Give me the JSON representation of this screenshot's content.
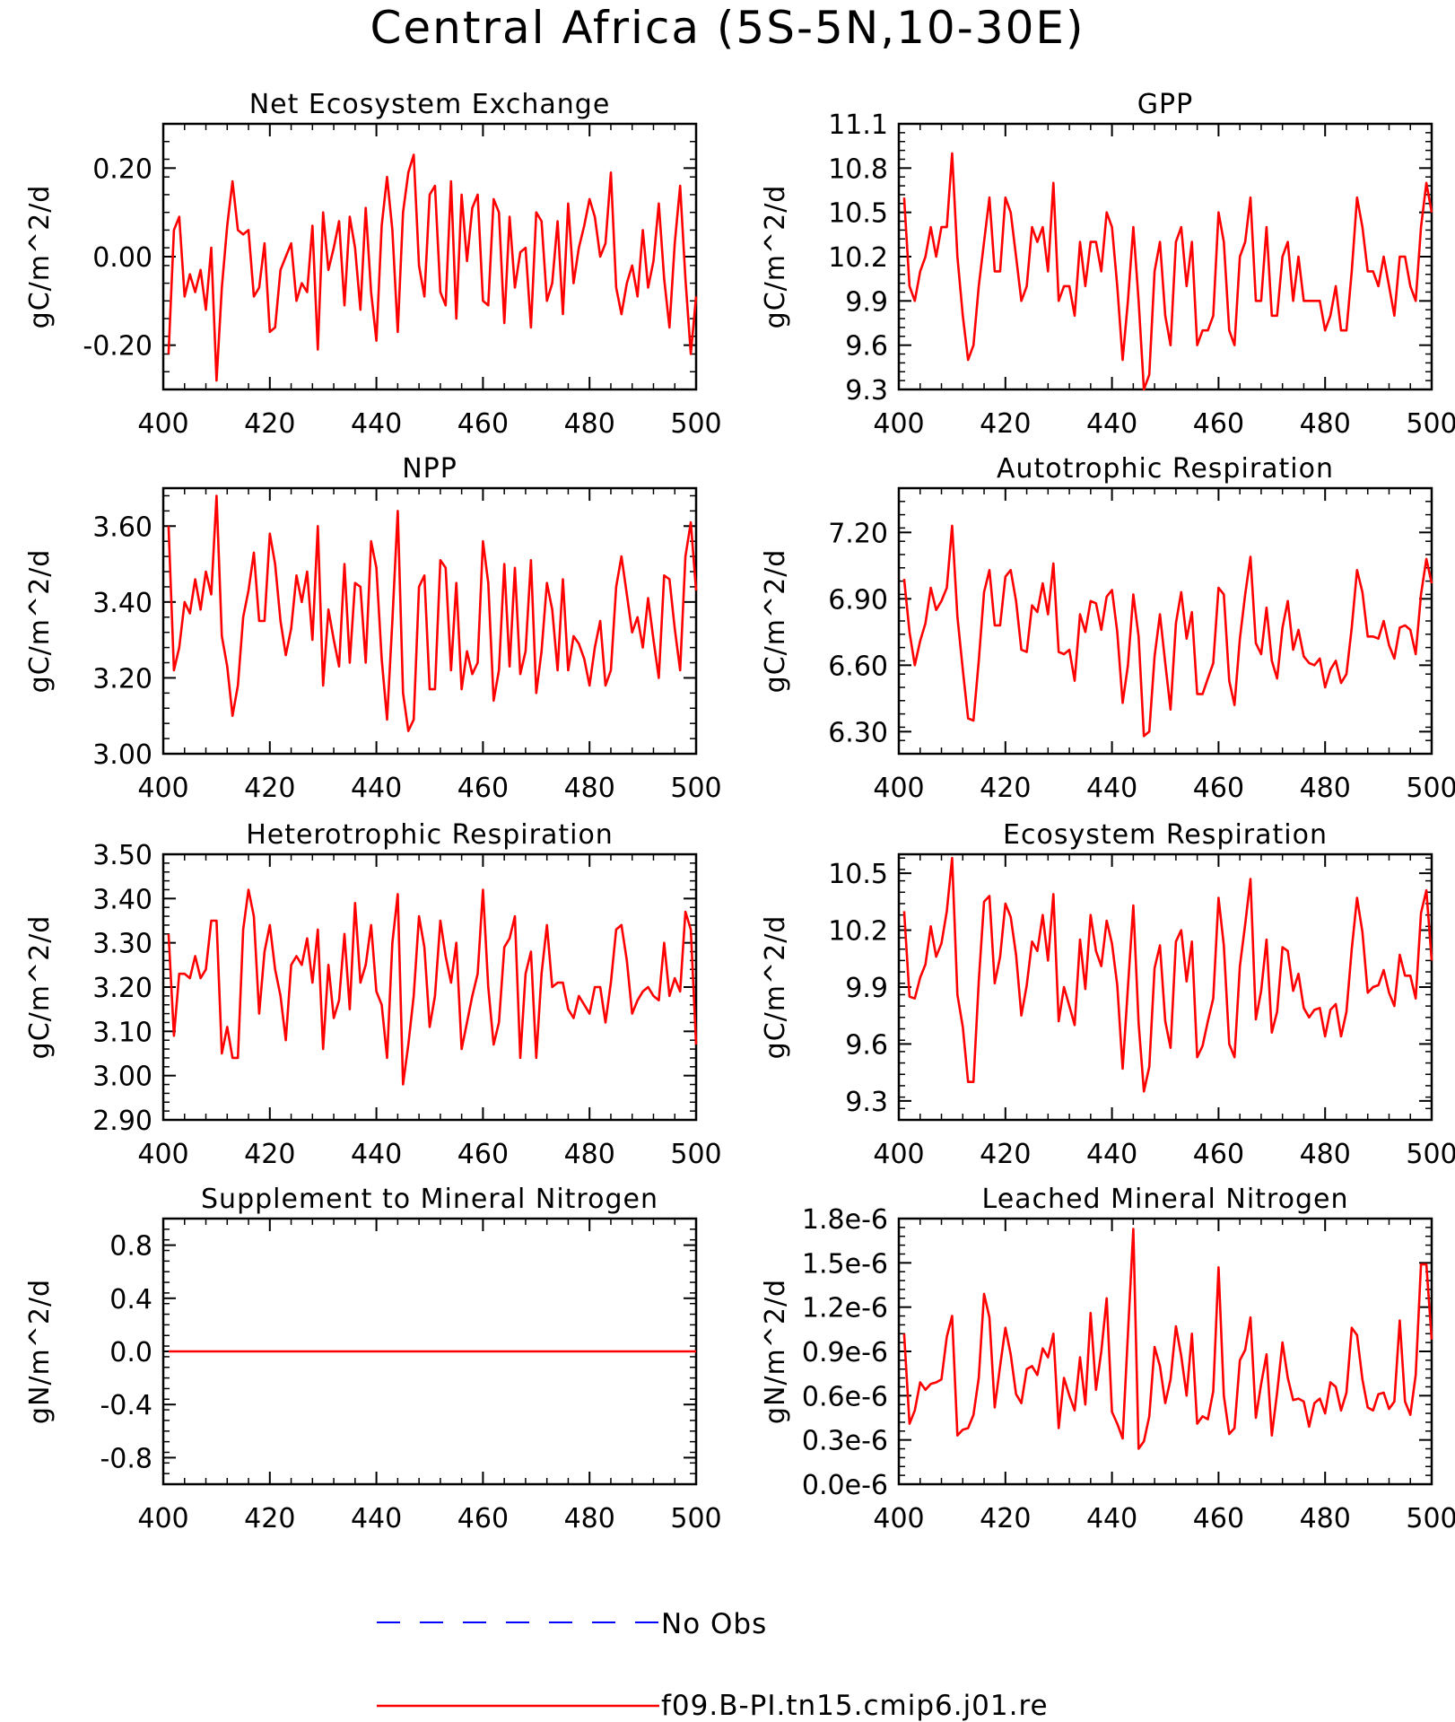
{
  "title": "Central Africa (5S-5N,10-30E)",
  "colors": {
    "model": "#ff0000",
    "obs": "#0000ff",
    "axis": "#000000"
  },
  "legend": {
    "obs_label": "No Obs",
    "model_label": "f09.B-PI.tn15.cmip6.j01.re"
  },
  "chart_data": [
    {
      "type": "line",
      "title": "Net Ecosystem Exchange",
      "ylabel": "gC/m^2/d",
      "xlabel": "",
      "xlim": [
        400,
        500
      ],
      "ylim": [
        -0.3,
        0.3
      ],
      "xticks": [
        "400",
        "420",
        "440",
        "460",
        "480",
        "500"
      ],
      "yticks": [
        "-0.20",
        "0.00",
        "0.20"
      ],
      "ytick_values": [
        -0.2,
        0.0,
        0.2
      ],
      "x_start": 401,
      "series": [
        {
          "values": [
            -0.22,
            0.06,
            0.09,
            -0.09,
            -0.04,
            -0.08,
            -0.03,
            -0.12,
            0.02,
            -0.28,
            -0.07,
            0.07,
            0.17,
            0.06,
            0.05,
            0.06,
            -0.09,
            -0.07,
            0.03,
            -0.17,
            -0.16,
            -0.03,
            0.0,
            0.03,
            -0.1,
            -0.06,
            -0.08,
            0.07,
            -0.21,
            0.1,
            -0.03,
            0.02,
            0.08,
            -0.11,
            0.09,
            0.02,
            -0.12,
            0.11,
            -0.08,
            -0.19,
            0.07,
            0.18,
            0.06,
            -0.17,
            0.1,
            0.19,
            0.23,
            -0.02,
            -0.09,
            0.14,
            0.16,
            -0.08,
            -0.11,
            0.17,
            -0.14,
            0.14,
            -0.01,
            0.11,
            0.14,
            -0.1,
            -0.11,
            0.13,
            0.1,
            -0.15,
            0.09,
            -0.07,
            0.01,
            0.02,
            -0.16,
            0.1,
            0.08,
            -0.1,
            -0.06,
            0.08,
            -0.13,
            0.12,
            -0.06,
            0.02,
            0.07,
            0.13,
            0.09,
            0.0,
            0.03,
            0.19,
            -0.07,
            -0.13,
            -0.06,
            -0.02,
            -0.09,
            0.06,
            -0.07,
            -0.01,
            0.12,
            -0.05,
            -0.16,
            0.03,
            0.16,
            -0.05,
            -0.22,
            -0.09
          ]
        }
      ]
    },
    {
      "type": "line",
      "title": "GPP",
      "ylabel": "gC/m^2/d",
      "xlabel": "",
      "xlim": [
        400,
        500
      ],
      "ylim": [
        9.3,
        11.1
      ],
      "xticks": [
        "400",
        "420",
        "440",
        "460",
        "480",
        "500"
      ],
      "yticks": [
        "9.3",
        "9.6",
        "9.9",
        "10.2",
        "10.5",
        "10.8",
        "11.1"
      ],
      "ytick_values": [
        9.3,
        9.6,
        9.9,
        10.2,
        10.5,
        10.8,
        11.1
      ],
      "x_start": 401,
      "series": [
        {
          "values": [
            10.6,
            10.0,
            9.9,
            10.1,
            10.2,
            10.4,
            10.2,
            10.4,
            10.4,
            10.9,
            10.2,
            9.8,
            9.5,
            9.6,
            10.0,
            10.3,
            10.6,
            10.1,
            10.1,
            10.6,
            10.5,
            10.2,
            9.9,
            10.0,
            10.4,
            10.3,
            10.4,
            10.1,
            10.7,
            9.9,
            10.0,
            10.0,
            9.8,
            10.3,
            10.0,
            10.3,
            10.3,
            10.1,
            10.5,
            10.4,
            10.0,
            9.5,
            9.9,
            10.4,
            9.9,
            9.3,
            9.4,
            10.1,
            10.3,
            9.8,
            9.6,
            10.3,
            10.4,
            10.0,
            10.3,
            9.6,
            9.7,
            9.7,
            9.8,
            10.5,
            10.3,
            9.7,
            9.6,
            10.2,
            10.3,
            10.6,
            9.9,
            9.9,
            10.4,
            9.8,
            9.8,
            10.2,
            10.3,
            9.9,
            10.2,
            9.9,
            9.9,
            9.9,
            9.9,
            9.7,
            9.8,
            10.0,
            9.7,
            9.7,
            10.1,
            10.6,
            10.4,
            10.1,
            10.1,
            10.0,
            10.2,
            10.0,
            9.8,
            10.2,
            10.2,
            10.0,
            9.9,
            10.4,
            10.7,
            10.5
          ]
        }
      ]
    },
    {
      "type": "line",
      "title": "NPP",
      "ylabel": "gC/m^2/d",
      "xlabel": "",
      "xlim": [
        400,
        500
      ],
      "ylim": [
        3.0,
        3.7
      ],
      "xticks": [
        "400",
        "420",
        "440",
        "460",
        "480",
        "500"
      ],
      "yticks": [
        "3.00",
        "3.20",
        "3.40",
        "3.60"
      ],
      "ytick_values": [
        3.0,
        3.2,
        3.4,
        3.6
      ],
      "x_start": 401,
      "series": [
        {
          "values": [
            3.6,
            3.22,
            3.28,
            3.4,
            3.37,
            3.46,
            3.38,
            3.48,
            3.42,
            3.68,
            3.31,
            3.23,
            3.1,
            3.18,
            3.36,
            3.43,
            3.53,
            3.35,
            3.35,
            3.58,
            3.5,
            3.35,
            3.26,
            3.33,
            3.47,
            3.4,
            3.48,
            3.3,
            3.6,
            3.18,
            3.38,
            3.3,
            3.23,
            3.5,
            3.24,
            3.45,
            3.44,
            3.24,
            3.56,
            3.49,
            3.25,
            3.09,
            3.35,
            3.64,
            3.16,
            3.06,
            3.09,
            3.44,
            3.47,
            3.17,
            3.17,
            3.51,
            3.49,
            3.22,
            3.45,
            3.17,
            3.27,
            3.21,
            3.24,
            3.56,
            3.45,
            3.14,
            3.22,
            3.5,
            3.23,
            3.49,
            3.21,
            3.27,
            3.51,
            3.16,
            3.27,
            3.45,
            3.38,
            3.22,
            3.46,
            3.22,
            3.31,
            3.29,
            3.25,
            3.18,
            3.28,
            3.35,
            3.18,
            3.22,
            3.44,
            3.52,
            3.42,
            3.32,
            3.36,
            3.28,
            3.41,
            3.3,
            3.2,
            3.47,
            3.46,
            3.33,
            3.22,
            3.52,
            3.61,
            3.43
          ]
        }
      ]
    },
    {
      "type": "line",
      "title": "Autotrophic Respiration",
      "ylabel": "gC/m^2/d",
      "xlabel": "",
      "xlim": [
        400,
        500
      ],
      "ylim": [
        6.2,
        7.4
      ],
      "xticks": [
        "400",
        "420",
        "440",
        "460",
        "480",
        "500"
      ],
      "yticks": [
        "6.30",
        "6.60",
        "6.90",
        "7.20"
      ],
      "ytick_values": [
        6.3,
        6.6,
        6.9,
        7.2
      ],
      "x_start": 401,
      "series": [
        {
          "values": [
            6.99,
            6.75,
            6.6,
            6.71,
            6.79,
            6.95,
            6.85,
            6.89,
            6.95,
            7.23,
            6.82,
            6.58,
            6.36,
            6.35,
            6.62,
            6.93,
            7.03,
            6.78,
            6.78,
            7.0,
            7.03,
            6.89,
            6.67,
            6.66,
            6.87,
            6.84,
            6.97,
            6.83,
            7.06,
            6.66,
            6.65,
            6.67,
            6.53,
            6.83,
            6.75,
            6.89,
            6.88,
            6.76,
            6.91,
            6.94,
            6.75,
            6.43,
            6.6,
            6.92,
            6.73,
            6.28,
            6.3,
            6.64,
            6.83,
            6.61,
            6.4,
            6.79,
            6.93,
            6.72,
            6.84,
            6.47,
            6.47,
            6.54,
            6.61,
            6.95,
            6.92,
            6.53,
            6.42,
            6.72,
            6.92,
            7.09,
            6.7,
            6.65,
            6.86,
            6.62,
            6.54,
            6.77,
            6.89,
            6.67,
            6.76,
            6.64,
            6.61,
            6.6,
            6.63,
            6.5,
            6.58,
            6.62,
            6.52,
            6.56,
            6.77,
            7.03,
            6.93,
            6.73,
            6.73,
            6.72,
            6.8,
            6.69,
            6.63,
            6.77,
            6.78,
            6.76,
            6.65,
            6.92,
            7.08,
            6.97
          ]
        }
      ]
    },
    {
      "type": "line",
      "title": "Heterotrophic Respiration",
      "ylabel": "gC/m^2/d",
      "xlabel": "",
      "xlim": [
        400,
        500
      ],
      "ylim": [
        2.9,
        3.5
      ],
      "xticks": [
        "400",
        "420",
        "440",
        "460",
        "480",
        "500"
      ],
      "yticks": [
        "2.90",
        "3.00",
        "3.10",
        "3.20",
        "3.30",
        "3.40",
        "3.50"
      ],
      "ytick_values": [
        2.9,
        3.0,
        3.1,
        3.2,
        3.3,
        3.4,
        3.5
      ],
      "x_start": 401,
      "series": [
        {
          "values": [
            3.32,
            3.09,
            3.23,
            3.23,
            3.22,
            3.27,
            3.22,
            3.24,
            3.35,
            3.35,
            3.05,
            3.11,
            3.04,
            3.04,
            3.33,
            3.42,
            3.36,
            3.14,
            3.28,
            3.34,
            3.24,
            3.18,
            3.08,
            3.25,
            3.27,
            3.25,
            3.31,
            3.21,
            3.33,
            3.06,
            3.25,
            3.13,
            3.17,
            3.32,
            3.15,
            3.39,
            3.21,
            3.25,
            3.34,
            3.19,
            3.16,
            3.04,
            3.3,
            3.41,
            2.98,
            3.07,
            3.18,
            3.36,
            3.29,
            3.11,
            3.18,
            3.35,
            3.27,
            3.21,
            3.3,
            3.06,
            3.12,
            3.18,
            3.23,
            3.42,
            3.2,
            3.07,
            3.12,
            3.29,
            3.31,
            3.36,
            3.04,
            3.23,
            3.28,
            3.04,
            3.23,
            3.34,
            3.2,
            3.21,
            3.21,
            3.15,
            3.13,
            3.18,
            3.16,
            3.14,
            3.2,
            3.2,
            3.12,
            3.21,
            3.33,
            3.34,
            3.26,
            3.14,
            3.17,
            3.19,
            3.2,
            3.18,
            3.17,
            3.3,
            3.18,
            3.22,
            3.19,
            3.37,
            3.33,
            3.07
          ]
        }
      ]
    },
    {
      "type": "line",
      "title": "Ecosystem Respiration",
      "ylabel": "gC/m^2/d",
      "xlabel": "",
      "xlim": [
        400,
        500
      ],
      "ylim": [
        9.2,
        10.6
      ],
      "xticks": [
        "400",
        "420",
        "440",
        "460",
        "480",
        "500"
      ],
      "yticks": [
        "9.3",
        "9.6",
        "9.9",
        "10.2",
        "10.5"
      ],
      "ytick_values": [
        9.3,
        9.6,
        9.9,
        10.2,
        10.5
      ],
      "x_start": 401,
      "series": [
        {
          "values": [
            10.3,
            9.85,
            9.84,
            9.95,
            10.02,
            10.22,
            10.06,
            10.13,
            10.3,
            10.58,
            9.86,
            9.69,
            9.4,
            9.4,
            9.93,
            10.35,
            10.38,
            9.92,
            10.06,
            10.34,
            10.27,
            10.07,
            9.75,
            9.91,
            10.14,
            10.09,
            10.28,
            10.04,
            10.39,
            9.72,
            9.9,
            9.8,
            9.7,
            10.15,
            9.89,
            10.28,
            10.09,
            10.01,
            10.25,
            10.13,
            9.91,
            9.47,
            9.9,
            10.33,
            9.71,
            9.35,
            9.48,
            10.0,
            10.12,
            9.72,
            9.58,
            10.14,
            10.2,
            9.93,
            10.14,
            9.53,
            9.59,
            9.72,
            9.84,
            10.37,
            10.12,
            9.6,
            9.53,
            10.01,
            10.23,
            10.47,
            9.73,
            9.88,
            10.15,
            9.66,
            9.77,
            10.11,
            10.09,
            9.88,
            9.97,
            9.79,
            9.74,
            9.78,
            9.79,
            9.64,
            9.78,
            9.81,
            9.64,
            9.77,
            10.1,
            10.37,
            10.19,
            9.87,
            9.9,
            9.91,
            9.99,
            9.87,
            9.8,
            10.07,
            9.96,
            9.96,
            9.84,
            10.29,
            10.41,
            10.04
          ]
        }
      ]
    },
    {
      "type": "line",
      "title": "Supplement to Mineral Nitrogen",
      "ylabel": "gN/m^2/d",
      "xlabel": "",
      "xlim": [
        400,
        500
      ],
      "ylim": [
        -1.0,
        1.0
      ],
      "xticks": [
        "400",
        "420",
        "440",
        "460",
        "480",
        "500"
      ],
      "yticks": [
        "-0.8",
        "-0.4",
        "0.0",
        "0.4",
        "0.8"
      ],
      "ytick_values": [
        -0.8,
        -0.4,
        0.0,
        0.4,
        0.8
      ],
      "x_start": 401,
      "series": [
        {
          "values": [
            0,
            0,
            0,
            0,
            0,
            0,
            0,
            0,
            0,
            0,
            0,
            0,
            0,
            0,
            0,
            0,
            0,
            0,
            0,
            0,
            0,
            0,
            0,
            0,
            0,
            0,
            0,
            0,
            0,
            0,
            0,
            0,
            0,
            0,
            0,
            0,
            0,
            0,
            0,
            0,
            0,
            0,
            0,
            0,
            0,
            0,
            0,
            0,
            0,
            0,
            0,
            0,
            0,
            0,
            0,
            0,
            0,
            0,
            0,
            0,
            0,
            0,
            0,
            0,
            0,
            0,
            0,
            0,
            0,
            0,
            0,
            0,
            0,
            0,
            0,
            0,
            0,
            0,
            0,
            0,
            0,
            0,
            0,
            0,
            0,
            0,
            0,
            0,
            0,
            0,
            0,
            0,
            0,
            0,
            0,
            0,
            0,
            0,
            0,
            0
          ]
        }
      ]
    },
    {
      "type": "line",
      "title": "Leached Mineral Nitrogen",
      "ylabel": "gN/m^2/d",
      "xlabel": "",
      "xlim": [
        400,
        500
      ],
      "ylim": [
        0.0,
        1.8e-06
      ],
      "xticks": [
        "400",
        "420",
        "440",
        "460",
        "480",
        "500"
      ],
      "yticks": [
        "0.0e-6",
        "0.3e-6",
        "0.6e-6",
        "0.9e-6",
        "1.2e-6",
        "1.5e-6",
        "1.8e-6"
      ],
      "ytick_values": [
        0.0,
        3e-07,
        6e-07,
        9e-07,
        1.2e-06,
        1.5e-06,
        1.8e-06
      ],
      "x_start": 401,
      "series": [
        {
          "values": [
            1.02e-06,
            4.1e-07,
            5e-07,
            6.9e-07,
            6.4e-07,
            6.8e-07,
            6.9e-07,
            7.1e-07,
            1e-06,
            1.14e-06,
            3.3e-07,
            3.7e-07,
            3.8e-07,
            4.7e-07,
            7.2e-07,
            1.29e-06,
            1.13e-06,
            5.2e-07,
            8e-07,
            1.06e-06,
            8.8e-07,
            6.1e-07,
            5.5e-07,
            7.8e-07,
            8e-07,
            7.4e-07,
            9.2e-07,
            8.6e-07,
            1.02e-06,
            3.8e-07,
            7.2e-07,
            6e-07,
            5e-07,
            8.6e-07,
            5.4e-07,
            1.16e-06,
            6.4e-07,
            9e-07,
            1.26e-06,
            4.9e-07,
            4.1e-07,
            3.1e-07,
            1.02e-06,
            1.73e-06,
            2.4e-07,
            2.9e-07,
            4.6e-07,
            9.3e-07,
            8e-07,
            5.5e-07,
            7.1e-07,
            1.07e-06,
            8.7e-07,
            6e-07,
            1.02e-06,
            4.1e-07,
            4.6e-07,
            4.4e-07,
            6.3e-07,
            1.47e-06,
            6e-07,
            3.4e-07,
            3.8e-07,
            8.4e-07,
            9.1e-07,
            1.13e-06,
            4.5e-07,
            6.8e-07,
            8.8e-07,
            3.3e-07,
            6.2e-07,
            9.6e-07,
            7.2e-07,
            5.7e-07,
            5.8e-07,
            5.6e-07,
            3.9e-07,
            5.5e-07,
            5.8e-07,
            4.8e-07,
            6.9e-07,
            6.6e-07,
            5e-07,
            6.2e-07,
            1.06e-06,
            1.01e-06,
            7.1e-07,
            5.2e-07,
            5e-07,
            6.1e-07,
            6.2e-07,
            5.1e-07,
            5.6e-07,
            1.11e-06,
            5.6e-07,
            4.7e-07,
            7.4e-07,
            1.49e-06,
            1.49e-06,
            9.8e-07
          ]
        }
      ]
    }
  ]
}
